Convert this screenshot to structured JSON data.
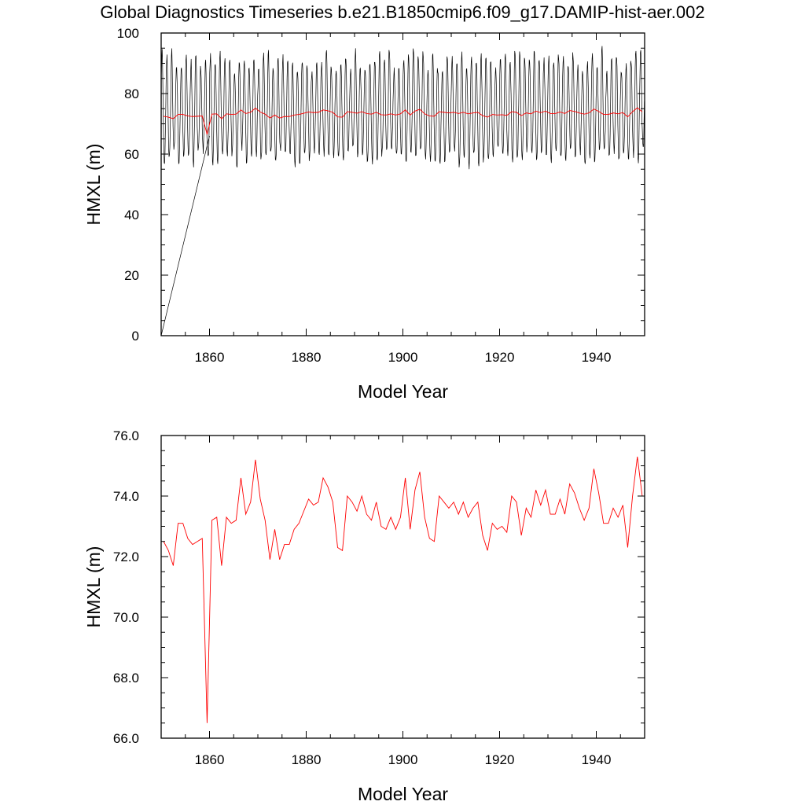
{
  "title": "Global Diagnostics Timeseries b.e21.B1850cmip6.f09_g17.DAMIP-hist-aer.002",
  "colors": {
    "monthly": "#000000",
    "annual": "#ff0000",
    "axes": "#000000"
  },
  "chart_data": [
    {
      "type": "line",
      "xlabel": "Model Year",
      "ylabel": "HMXL (m)",
      "xlim": [
        1850,
        1950
      ],
      "ylim": [
        0,
        100
      ],
      "xticks": [
        "1860",
        "1880",
        "1900",
        "1920",
        "1940"
      ],
      "yticks": [
        "0",
        "20",
        "40",
        "60",
        "80",
        "100"
      ],
      "monthly_series": {
        "name": "",
        "description_of_values": "monthly mean HMXL, seasonal cycle",
        "start_year": 1850,
        "first_value": 0,
        "seasonal_min_range": [
          56,
          62
        ],
        "seasonal_max_range": [
          87,
          95
        ]
      },
      "series": [
        {
          "name": "",
          "x": [
            1850.5,
            1851.5,
            1852.5,
            1853.5,
            1854.5,
            1855.5,
            1856.5,
            1857.5,
            1858.5,
            1859.5,
            1860.5,
            1861.5,
            1862.5,
            1863.5,
            1864.5,
            1865.5,
            1866.5,
            1867.5,
            1868.5,
            1869.5,
            1870.5,
            1871.5,
            1872.5,
            1873.5,
            1874.5,
            1875.5,
            1876.5,
            1877.5,
            1878.5,
            1879.5,
            1880.5,
            1881.5,
            1882.5,
            1883.5,
            1884.5,
            1885.5,
            1886.5,
            1887.5,
            1888.5,
            1889.5,
            1890.5,
            1891.5,
            1892.5,
            1893.5,
            1894.5,
            1895.5,
            1896.5,
            1897.5,
            1898.5,
            1899.5,
            1900.5,
            1901.5,
            1902.5,
            1903.5,
            1904.5,
            1905.5,
            1906.5,
            1907.5,
            1908.5,
            1909.5,
            1910.5,
            1911.5,
            1912.5,
            1913.5,
            1914.5,
            1915.5,
            1916.5,
            1917.5,
            1918.5,
            1919.5,
            1920.5,
            1921.5,
            1922.5,
            1923.5,
            1924.5,
            1925.5,
            1926.5,
            1927.5,
            1928.5,
            1929.5,
            1930.5,
            1931.5,
            1932.5,
            1933.5,
            1934.5,
            1935.5,
            1936.5,
            1937.5,
            1938.5,
            1939.5,
            1940.5,
            1941.5,
            1942.5,
            1943.5,
            1944.5,
            1945.5,
            1946.5,
            1947.5,
            1948.5,
            1949.5
          ],
          "y": [
            72.5,
            72.2,
            71.7,
            73.1,
            73.1,
            72.6,
            72.4,
            72.5,
            72.6,
            66.5,
            73.2,
            73.3,
            71.7,
            73.3,
            73.1,
            73.2,
            74.6,
            73.4,
            73.8,
            75.2,
            73.9,
            73.2,
            71.9,
            72.9,
            71.9,
            72.4,
            72.4,
            72.9,
            73.1,
            73.5,
            73.9,
            73.7,
            73.8,
            74.6,
            74.3,
            73.8,
            72.3,
            72.2,
            74.0,
            73.8,
            73.5,
            74.0,
            73.4,
            73.2,
            73.8,
            73.0,
            72.9,
            73.3,
            72.9,
            73.3,
            74.6,
            72.9,
            74.2,
            74.8,
            73.3,
            72.6,
            72.5,
            74.0,
            73.8,
            73.6,
            73.8,
            73.4,
            73.8,
            73.3,
            73.6,
            73.8,
            72.7,
            72.2,
            73.1,
            72.9,
            73.0,
            72.8,
            74.0,
            73.8,
            72.7,
            73.6,
            73.3,
            74.2,
            73.7,
            74.2,
            73.4,
            73.4,
            73.9,
            73.4,
            74.4,
            74.1,
            73.6,
            73.2,
            73.6,
            74.9,
            74.1,
            73.1,
            73.1,
            73.6,
            73.3,
            73.7,
            72.3,
            74.0,
            75.3,
            74.0
          ]
        }
      ]
    },
    {
      "type": "line",
      "xlabel": "Model Year",
      "ylabel": "HMXL (m)",
      "xlim": [
        1850,
        1950
      ],
      "ylim": [
        66,
        76
      ],
      "xticks": [
        "1860",
        "1880",
        "1900",
        "1920",
        "1940"
      ],
      "yticks": [
        "66.0",
        "68.0",
        "70.0",
        "72.0",
        "74.0",
        "76.0"
      ],
      "series_ref": "same annual series as panel 1"
    }
  ]
}
